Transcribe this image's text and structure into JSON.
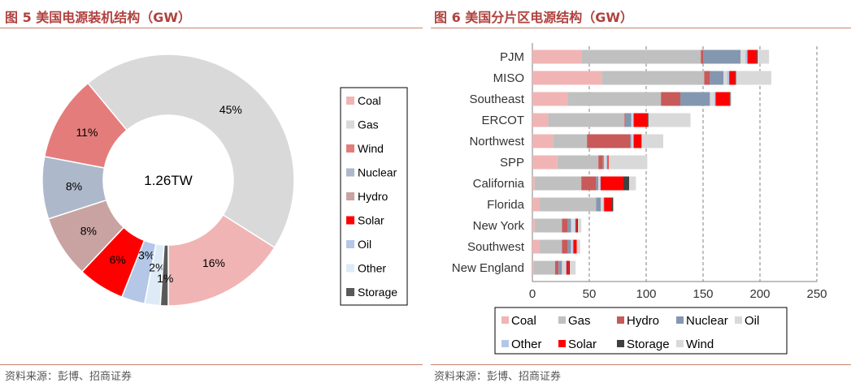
{
  "left": {
    "title": "图 5 美国电源装机结构（GW）",
    "source": "资料来源：彭博、招商证券",
    "chart_data": {
      "type": "pie",
      "title": "图 5 美国电源装机结构（GW）",
      "center_label": "1.26TW",
      "slices": [
        {
          "name": "Coal",
          "value": 16,
          "label": "16%",
          "color": "#f1b4b4"
        },
        {
          "name": "Gas",
          "value": 45,
          "label": "45%",
          "color": "#d9d9d9"
        },
        {
          "name": "Wind",
          "value": 11,
          "label": "11%",
          "color": "#e57c7c"
        },
        {
          "name": "Nuclear",
          "value": 8,
          "label": "8%",
          "color": "#adb9ca"
        },
        {
          "name": "Hydro",
          "value": 8,
          "label": "8%",
          "color": "#c9a2a2"
        },
        {
          "name": "Solar",
          "value": 6,
          "label": "6%",
          "color": "#ff0000"
        },
        {
          "name": "Oil",
          "value": 3,
          "label": "3%",
          "color": "#b4c7e7"
        },
        {
          "name": "Other",
          "value": 2,
          "label": "2%",
          "color": "#deebf7"
        },
        {
          "name": "Storage",
          "value": 1,
          "label": "1%",
          "color": "#595959"
        }
      ],
      "legend": [
        "Coal",
        "Gas",
        "Wind",
        "Nuclear",
        "Hydro",
        "Solar",
        "Oil",
        "Other",
        "Storage"
      ],
      "legend_position": "right"
    }
  },
  "right": {
    "title": "图 6 美国分片区电源结构（GW）",
    "source": "资料来源：彭博、招商证券",
    "chart_data": {
      "type": "bar",
      "orientation": "horizontal",
      "stacked": true,
      "title": "图 6 美国分片区电源结构（GW）",
      "categories": [
        "PJM",
        "MISO",
        "Southeast",
        "ERCOT",
        "Northwest",
        "SPP",
        "California",
        "Florida",
        "New York",
        "Southwest",
        "New England"
      ],
      "series": [
        {
          "name": "Coal",
          "color": "#f1b4b4",
          "values": [
            43,
            61,
            31,
            14,
            18,
            22,
            2,
            6,
            2,
            6,
            1
          ]
        },
        {
          "name": "Gas",
          "color": "#c0c0c0",
          "values": [
            105,
            90,
            82,
            67,
            30,
            36,
            41,
            50,
            24,
            20,
            19
          ]
        },
        {
          "name": "Hydro",
          "color": "#c85a5a",
          "values": [
            2,
            5,
            17,
            1,
            38,
            4,
            13,
            0,
            5,
            5,
            3
          ]
        },
        {
          "name": "Nuclear",
          "color": "#8497b0",
          "values": [
            33,
            12,
            26,
            5,
            1,
            1,
            2,
            4,
            3,
            3,
            3
          ]
        },
        {
          "name": "Oil",
          "color": "#d9d9d9",
          "values": [
            4,
            3,
            4,
            1,
            1,
            2,
            1,
            2,
            3,
            1,
            3
          ]
        },
        {
          "name": "Other",
          "color": "#b4c7e7",
          "values": [
            2,
            2,
            1,
            1,
            1,
            1,
            1,
            1,
            1,
            1,
            1
          ]
        },
        {
          "name": "Solar",
          "color": "#ff0000",
          "values": [
            8,
            5,
            12,
            12,
            7,
            1,
            20,
            7,
            1,
            3,
            2
          ]
        },
        {
          "name": "Storage",
          "color": "#404040",
          "values": [
            1,
            1,
            1,
            1,
            0,
            0,
            5,
            1,
            1,
            0,
            1
          ]
        },
        {
          "name": "Wind",
          "color": "#d9d9d9",
          "values": [
            10,
            31,
            1,
            37,
            19,
            34,
            6,
            0,
            3,
            3,
            5
          ]
        }
      ],
      "xlim": [
        0,
        250
      ],
      "xticks": [
        "0",
        "50",
        "100",
        "150",
        "200",
        "250"
      ],
      "grid": "vertical dashed",
      "legend": [
        "Coal",
        "Gas",
        "Hydro",
        "Nuclear",
        "Oil",
        "Other",
        "Solar",
        "Storage",
        "Wind"
      ],
      "legend_position": "bottom"
    }
  }
}
